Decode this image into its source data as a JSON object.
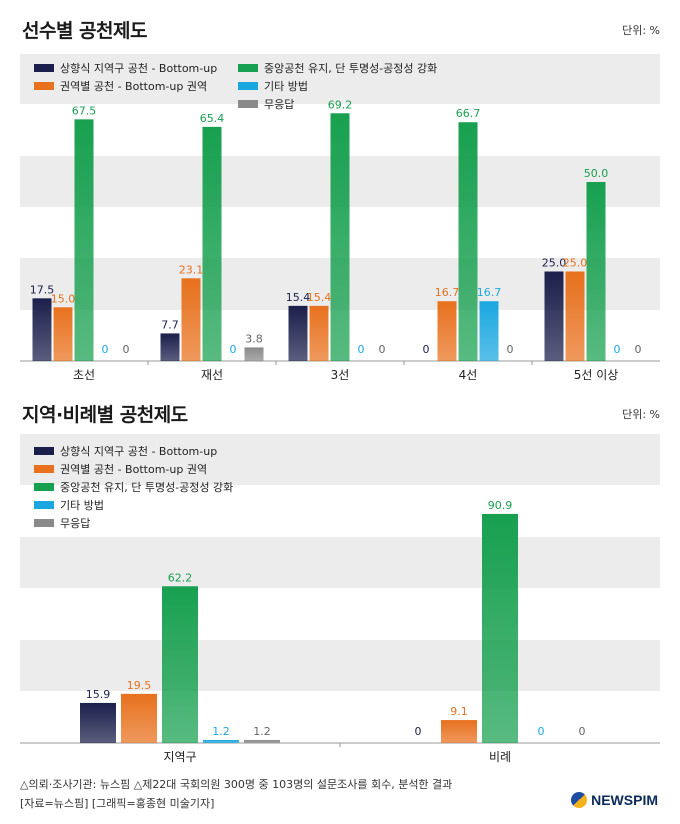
{
  "colors": {
    "navy": "#1b1f4b",
    "orange": "#e8711e",
    "green": "#17a04f",
    "blue": "#1aa7e0",
    "gray": "#8a8a8a",
    "band": "#ececec"
  },
  "chart_data": [
    {
      "type": "bar",
      "title": "선수별 공천제도",
      "unit_label": "단위: %",
      "categories": [
        "초선",
        "재선",
        "3선",
        "4선",
        "5선 이상"
      ],
      "ylim": [
        0,
        80
      ],
      "series": [
        {
          "name": "상향식 지역구 공천 - Bottom-up",
          "color_key": "navy",
          "values": [
            17.5,
            7.7,
            15.4,
            0,
            25.0
          ]
        },
        {
          "name": "권역별 공천 - Bottom-up 권역",
          "color_key": "orange",
          "values": [
            15.0,
            23.1,
            15.4,
            16.7,
            25.0
          ]
        },
        {
          "name": "중앙공천 유지, 단 투명성-공정성 강화",
          "color_key": "green",
          "values": [
            67.5,
            65.4,
            69.2,
            66.7,
            50.0
          ]
        },
        {
          "name": "기타 방법",
          "color_key": "blue",
          "values": [
            0,
            0,
            0,
            16.7,
            0
          ]
        },
        {
          "name": "무응답",
          "color_key": "gray",
          "values": [
            0,
            3.8,
            0,
            0,
            0
          ]
        }
      ],
      "value_labels": [
        [
          "17.5",
          "7.7",
          "15.4",
          "0",
          "25.0"
        ],
        [
          "15.0",
          "23.1",
          "15.4",
          "16.7",
          "25.0"
        ],
        [
          "67.5",
          "65.4",
          "69.2",
          "66.7",
          "50.0"
        ],
        [
          "0",
          "0",
          "0",
          "16.7",
          "0"
        ],
        [
          "0",
          "3.8",
          "0",
          "0",
          "0"
        ]
      ]
    },
    {
      "type": "bar",
      "title": "지역·비례별 공천제도",
      "unit_label": "단위: %",
      "categories": [
        "지역구",
        "비례"
      ],
      "ylim": [
        0,
        110
      ],
      "series": [
        {
          "name": "상향식 지역구 공천 - Bottom-up",
          "color_key": "navy",
          "values": [
            15.9,
            0
          ]
        },
        {
          "name": "권역별 공천 - Bottom-up 권역",
          "color_key": "orange",
          "values": [
            19.5,
            9.1
          ]
        },
        {
          "name": "중앙공천 유지, 단 투명성-공정성 강화",
          "color_key": "green",
          "values": [
            62.2,
            90.9
          ]
        },
        {
          "name": "기타 방법",
          "color_key": "blue",
          "values": [
            1.2,
            0
          ]
        },
        {
          "name": "무응답",
          "color_key": "gray",
          "values": [
            1.2,
            0
          ]
        }
      ],
      "value_labels": [
        [
          "15.9",
          "0"
        ],
        [
          "19.5",
          "9.1"
        ],
        [
          "62.2",
          "90.9"
        ],
        [
          "1.2",
          "0"
        ],
        [
          "1.2",
          "0"
        ]
      ]
    }
  ],
  "footer": {
    "line1": "△의뢰·조사기관: 뉴스핌   △제22대 국회의원 300명 중 103명의 설문조사를 회수, 분석한 결과",
    "line2": "[자료=뉴스핌] [그래픽=홍종현 미술기자]",
    "logo": "NEWSPIM"
  }
}
